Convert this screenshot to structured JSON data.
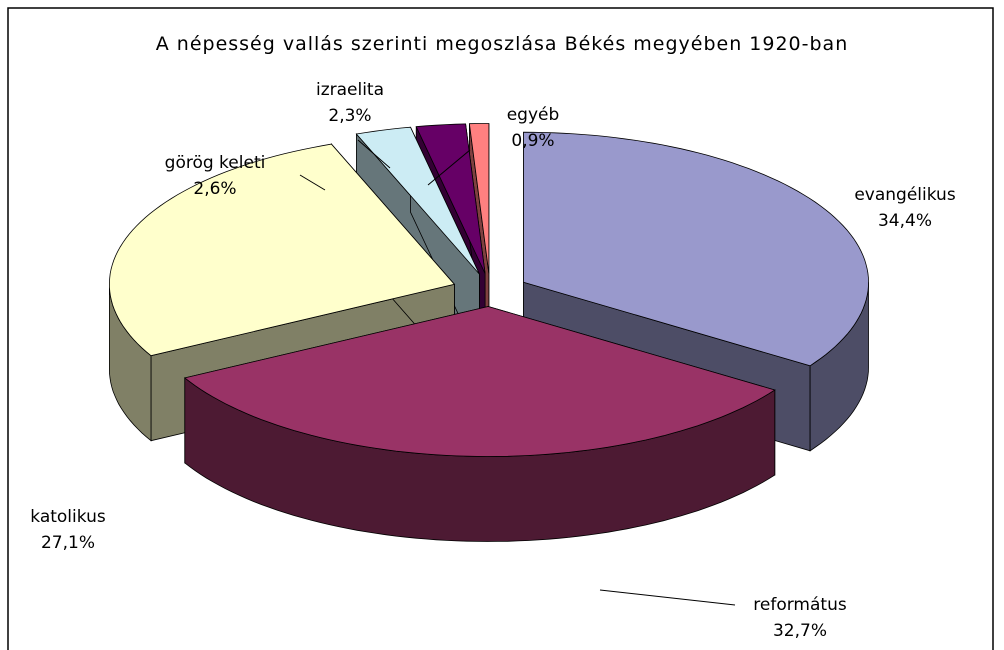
{
  "chart_data": {
    "type": "pie3d",
    "title": "A népesség vallás szerinti megoszlása Békés megyében 1920-ban",
    "categories": [
      "evangélikus",
      "református",
      "katolikus",
      "görög keleti",
      "izraelita",
      "egyéb"
    ],
    "values": [
      34.4,
      32.7,
      27.1,
      2.6,
      2.3,
      0.9
    ],
    "value_labels": [
      "34,4%",
      "32,7%",
      "27,1%",
      "2,6%",
      "2,3%",
      "0,9%"
    ],
    "colors": [
      "#9999cc",
      "#993366",
      "#ffffcc",
      "#ccecf4",
      "#660066",
      "#ff8080"
    ]
  }
}
